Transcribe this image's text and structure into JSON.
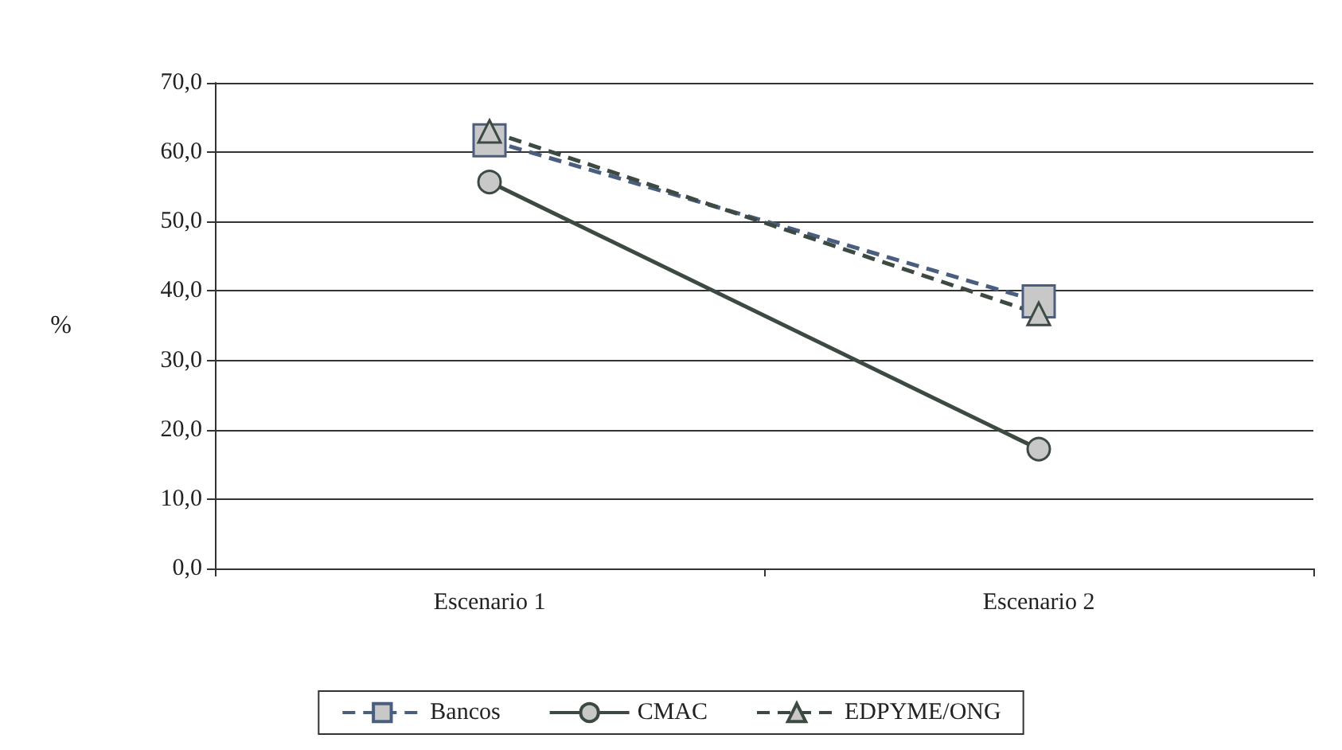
{
  "chart_data": {
    "type": "line",
    "ylabel": "%",
    "categories": [
      "Escenario 1",
      "Escenario 2"
    ],
    "series": [
      {
        "name": "Bancos",
        "color": "#4a5f80",
        "values": [
          61.7,
          38.5
        ],
        "marker": "square",
        "line_style": "dashed"
      },
      {
        "name": "CMAC",
        "color": "#3d4a42",
        "values": [
          55.7,
          17.2
        ],
        "marker": "circle",
        "line_style": "solid"
      },
      {
        "name": "EDPYME/ONG",
        "color": "#3d4a42",
        "values": [
          63.0,
          36.7
        ],
        "marker": "triangle",
        "line_style": "dashed"
      }
    ],
    "ylim": [
      0,
      70
    ],
    "yticks": [
      {
        "value": 0,
        "label": "0,0"
      },
      {
        "value": 10,
        "label": "10,0"
      },
      {
        "value": 20,
        "label": "20,0"
      },
      {
        "value": 30,
        "label": "30,0"
      },
      {
        "value": 40,
        "label": "40,0"
      },
      {
        "value": 50,
        "label": "50,0"
      },
      {
        "value": 60,
        "label": "60,0"
      },
      {
        "value": 70,
        "label": "70,0"
      }
    ],
    "grid": "y",
    "legend": "bottom"
  }
}
